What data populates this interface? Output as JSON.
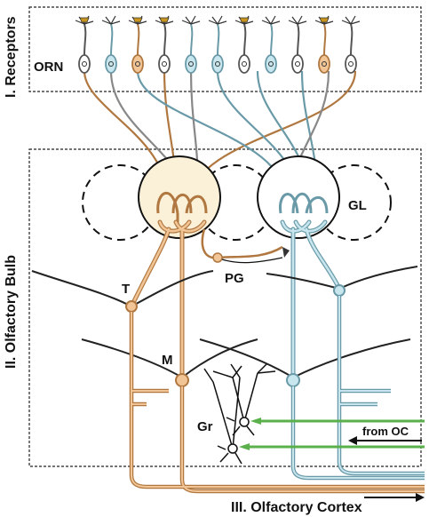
{
  "sections": {
    "receptors": "I. Receptors",
    "bulb": "II. Olfactory Bulb",
    "cortex": "III. Olfactory Cortex"
  },
  "labels": {
    "orn": "ORN",
    "gl": "GL",
    "pg": "PG",
    "t": "T",
    "m": "M",
    "gr": "Gr",
    "from_oc": "from OC"
  },
  "colors": {
    "tan": "#f2c596",
    "tan_stroke": "#b07840",
    "blue": "#c8e6ee",
    "blue_stroke": "#6a9aa8",
    "glomerulus_fill": "#fbf0d8",
    "green": "#5ab04a",
    "receptor_cilia": "#c8941e"
  },
  "receptor_types": [
    "white",
    "blue",
    "tan",
    "white",
    "blue",
    "blue",
    "white",
    "blue",
    "white",
    "tan",
    "white"
  ]
}
